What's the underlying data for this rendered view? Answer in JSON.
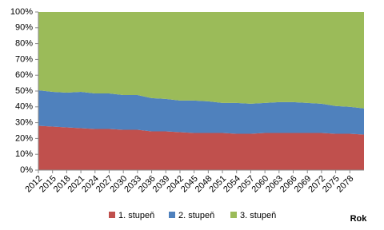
{
  "chart_data": {
    "type": "area",
    "stacked": true,
    "x_title": "Rok",
    "x": [
      2012,
      2015,
      2018,
      2021,
      2024,
      2027,
      2030,
      2033,
      2036,
      2039,
      2042,
      2045,
      2048,
      2051,
      2054,
      2057,
      2060,
      2063,
      2066,
      2069,
      2072,
      2075,
      2078,
      2081
    ],
    "xlim": [
      2012,
      2081
    ],
    "xticks": [
      2012,
      2015,
      2018,
      2021,
      2024,
      2027,
      2030,
      2033,
      2036,
      2039,
      2042,
      2045,
      2048,
      2051,
      2054,
      2057,
      2060,
      2063,
      2066,
      2069,
      2072,
      2075,
      2078
    ],
    "ylim": [
      0,
      100
    ],
    "yticks": [
      {
        "value": 0,
        "label": "0%"
      },
      {
        "value": 10,
        "label": "10%"
      },
      {
        "value": 20,
        "label": "20%"
      },
      {
        "value": 30,
        "label": "30%"
      },
      {
        "value": 40,
        "label": "40%"
      },
      {
        "value": 50,
        "label": "50%"
      },
      {
        "value": 60,
        "label": "60%"
      },
      {
        "value": 70,
        "label": "70%"
      },
      {
        "value": 80,
        "label": "80%"
      },
      {
        "value": 90,
        "label": "90%"
      },
      {
        "value": 100,
        "label": "100%"
      }
    ],
    "legend": "bottom",
    "series": [
      {
        "name": "1. stupeň",
        "color": "#c0504d",
        "values": [
          28,
          27.5,
          27,
          26.5,
          26,
          26,
          25.5,
          25.5,
          24.5,
          24.5,
          24,
          23.5,
          23.5,
          23.5,
          23,
          23,
          23.5,
          23.5,
          23.5,
          23.5,
          23.5,
          23,
          23,
          22.5
        ]
      },
      {
        "name": "2. stupeň",
        "color": "#4f81bd",
        "values": [
          22.5,
          22,
          22,
          23,
          22.5,
          22.5,
          22,
          22,
          21,
          20.5,
          20,
          20.5,
          20,
          19,
          19.5,
          19,
          19,
          19.5,
          19.5,
          19,
          18.5,
          17.5,
          17,
          16.5
        ]
      },
      {
        "name": "3. stupeň",
        "color": "#9bbb59",
        "values": [
          49.5,
          50.5,
          51,
          50.5,
          51.5,
          51.5,
          52.5,
          52.5,
          54.5,
          55,
          56,
          56,
          56.5,
          57.5,
          57.5,
          58,
          57.5,
          57,
          57,
          57.5,
          58,
          59.5,
          60,
          61
        ]
      }
    ]
  }
}
